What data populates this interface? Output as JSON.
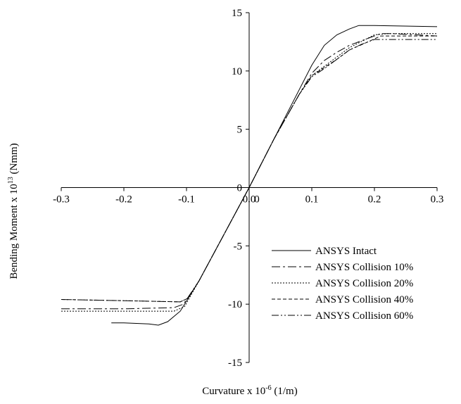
{
  "chart_data": {
    "type": "line",
    "title": "",
    "xlabel": "Curvature x 10",
    "xlabel_exponent": "-6",
    "xlabel_unit": " (1/m)",
    "ylabel": "Bending Moment x 10",
    "ylabel_exponent": "13",
    "ylabel_unit": " (Nmm)",
    "xlim": [
      -0.3,
      0.3
    ],
    "ylim": [
      -15,
      15
    ],
    "x_ticks": [
      {
        "value": -0.3,
        "label": "-0.3"
      },
      {
        "value": -0.2,
        "label": "-0.2"
      },
      {
        "value": -0.1,
        "label": "-0.1"
      },
      {
        "value": 0.1,
        "label": "0.1"
      },
      {
        "value": 0.2,
        "label": "0.2"
      },
      {
        "value": 0.3,
        "label": "0.3"
      }
    ],
    "x_origin_labels": [
      "0.0",
      "0"
    ],
    "y_ticks": [
      {
        "value": 15,
        "label": "15"
      },
      {
        "value": 10,
        "label": "10"
      },
      {
        "value": 5,
        "label": "5"
      },
      {
        "value": 0,
        "label": "0"
      },
      {
        "value": -5,
        "label": "-5"
      },
      {
        "value": -10,
        "label": "-10"
      },
      {
        "value": -15,
        "label": "-15"
      }
    ],
    "grid": false,
    "legend_position": "bottom-right",
    "series": [
      {
        "name": "ANSYS Intact",
        "dash": "none",
        "x": [
          -0.22,
          -0.2,
          -0.16,
          -0.145,
          -0.13,
          -0.11,
          -0.08,
          -0.04,
          0,
          0.04,
          0.08,
          0.1,
          0.12,
          0.14,
          0.16,
          0.175,
          0.2,
          0.3
        ],
        "y": [
          -11.6,
          -11.6,
          -11.7,
          -11.8,
          -11.5,
          -10.6,
          -8.0,
          -4.0,
          0,
          4.2,
          8.4,
          10.5,
          12.2,
          13.1,
          13.6,
          13.9,
          13.9,
          13.8
        ]
      },
      {
        "name": "ANSYS Collision 10%",
        "dash": "12,4,3,4",
        "x": [
          -0.3,
          -0.2,
          -0.12,
          -0.105,
          -0.08,
          -0.04,
          0,
          0.04,
          0.08,
          0.1,
          0.12,
          0.14,
          0.16,
          0.19,
          0.21,
          0.23,
          0.3
        ],
        "y": [
          -10.4,
          -10.4,
          -10.3,
          -10.0,
          -8.0,
          -4.0,
          0,
          4.2,
          8.0,
          9.8,
          10.9,
          11.6,
          12.2,
          12.8,
          13.2,
          13.2,
          13.0
        ]
      },
      {
        "name": "ANSYS Collision 20%",
        "dash": "2,2",
        "x": [
          -0.3,
          -0.2,
          -0.12,
          -0.103,
          -0.08,
          -0.04,
          0,
          0.04,
          0.08,
          0.1,
          0.12,
          0.14,
          0.16,
          0.2,
          0.22,
          0.3
        ],
        "y": [
          -10.6,
          -10.6,
          -10.6,
          -10.2,
          -8.0,
          -4.0,
          0,
          4.2,
          8.0,
          9.6,
          10.4,
          11.2,
          12.0,
          13.1,
          13.2,
          13.2
        ]
      },
      {
        "name": "ANSYS Collision 40%",
        "dash": "5,3",
        "x": [
          -0.3,
          -0.2,
          -0.11,
          -0.098,
          -0.08,
          -0.04,
          0,
          0.04,
          0.08,
          0.1,
          0.12,
          0.14,
          0.16,
          0.19,
          0.21,
          0.3
        ],
        "y": [
          -9.6,
          -9.7,
          -9.8,
          -9.5,
          -8.0,
          -4.0,
          0,
          4.2,
          8.0,
          9.6,
          10.3,
          11.0,
          11.8,
          12.5,
          13.0,
          13.0
        ]
      },
      {
        "name": "ANSYS Collision 60%",
        "dash": "10,3,2,3,2,3",
        "x": [
          -0.3,
          -0.2,
          -0.11,
          -0.098,
          -0.08,
          -0.04,
          0,
          0.04,
          0.08,
          0.1,
          0.12,
          0.14,
          0.16,
          0.18,
          0.2,
          0.3
        ],
        "y": [
          -9.6,
          -9.7,
          -9.8,
          -9.5,
          -8.0,
          -4.0,
          0,
          4.2,
          8.0,
          9.5,
          10.2,
          11.0,
          11.8,
          12.3,
          12.7,
          12.7
        ]
      }
    ]
  }
}
